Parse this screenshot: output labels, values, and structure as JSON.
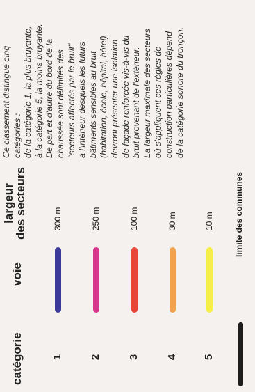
{
  "headers": {
    "categorie": "catégorie",
    "voie": "voie",
    "largeur_line1": "largeur",
    "largeur_line2": "des secteurs"
  },
  "rows": [
    {
      "category": "1",
      "width": "300 m",
      "color": "#3b3a9a"
    },
    {
      "category": "2",
      "width": "250 m",
      "color": "#d8358c"
    },
    {
      "category": "3",
      "width": "100 m",
      "color": "#e84636"
    },
    {
      "category": "4",
      "width": "30 m",
      "color": "#f2a24c"
    },
    {
      "category": "5",
      "width": "10 m",
      "color": "#f7ee4a"
    }
  ],
  "legend": {
    "limit_label": "limite des communes",
    "limit_color": "#1d1d1d"
  },
  "description_lines": [
    "Ce classement distingue cinq",
    "catégories :",
    "de la catégorie 1, la plus bruyante,",
    "à la catégorie 5, la moins bruyante.",
    "De part et d'autre du bord de la",
    "chaussée sont délimités des",
    "\"secteurs affectés par le bruit\"",
    "à l'intérieur desquels les futurs",
    "bâtiments sensibles au bruit",
    "(habitation, école, hôpital, hôtel)",
    "devront présenter une isolation",
    "de façade renforcée vis-à-vis du",
    "bruit provenant de l'extérieur.",
    "La largeur maximale des secteurs",
    "où s'appliquent ces règles de",
    "construction particulières dépend",
    "de la catégorie sonore du tronçon."
  ]
}
